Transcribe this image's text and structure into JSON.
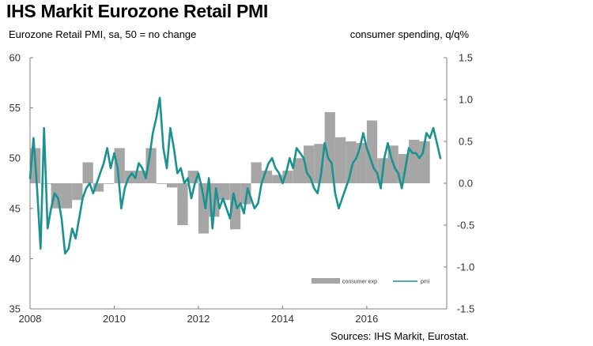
{
  "title": "IHS Markit Eurozone Retail PMI",
  "subtitle_left": "Eurozone Retail PMI, sa, 50 = no change",
  "subtitle_right": "consumer spending, q/q%",
  "source": "Sources: IHS Markit, Eurostat.",
  "colors": {
    "pmi_line": "#1a9290",
    "bars": "#a6a6a6",
    "axis": "#808080"
  },
  "chart_data": {
    "type": "line+bar",
    "title": "IHS Markit Eurozone Retail PMI",
    "xlabel": "",
    "ylabel_left": "Eurozone Retail PMI, sa, 50 = no change",
    "ylabel_right": "consumer spending, q/q%",
    "x_range": [
      2008,
      2017.9
    ],
    "x_ticks": [
      "2008",
      "2010",
      "2012",
      "2014",
      "2016"
    ],
    "y_left_range": [
      35,
      60
    ],
    "y_left_ticks": [
      "35",
      "40",
      "45",
      "50",
      "55",
      "60"
    ],
    "y_right_range": [
      -1.5,
      1.5
    ],
    "y_right_ticks": [
      "-1.5",
      "-1.0",
      "-0.5",
      "0.0",
      "0.5",
      "1.0",
      "1.5"
    ],
    "legend": {
      "position": "bottom-right",
      "entries": [
        "consumer exp",
        "pmi"
      ]
    },
    "series": [
      {
        "name": "consumer exp",
        "kind": "bar",
        "axis": "right",
        "quarter_starts": [
          2008.0,
          2008.25,
          2008.5,
          2008.75,
          2009.0,
          2009.25,
          2009.5,
          2009.75,
          2010.0,
          2010.25,
          2010.5,
          2010.75,
          2011.0,
          2011.25,
          2011.5,
          2011.75,
          2012.0,
          2012.25,
          2012.5,
          2012.75,
          2013.0,
          2013.25,
          2013.5,
          2013.75,
          2014.0,
          2014.25,
          2014.5,
          2014.75,
          2015.0,
          2015.25,
          2015.5,
          2015.75,
          2016.0,
          2016.25,
          2016.5,
          2016.75,
          2017.0,
          2017.25
        ],
        "values": [
          0.42,
          0.0,
          -0.3,
          -0.3,
          -0.2,
          0.25,
          -0.1,
          0.0,
          0.42,
          0.15,
          0.15,
          0.42,
          0.0,
          -0.05,
          -0.5,
          0.15,
          -0.6,
          -0.4,
          -0.2,
          -0.55,
          -0.25,
          0.25,
          0.15,
          0.1,
          0.15,
          0.3,
          0.45,
          0.47,
          0.85,
          0.55,
          0.5,
          0.48,
          0.75,
          0.3,
          0.45,
          0.35,
          0.52,
          0.5
        ]
      },
      {
        "name": "pmi",
        "kind": "line",
        "axis": "left",
        "x": [
          2008.0,
          2008.083,
          2008.167,
          2008.25,
          2008.333,
          2008.417,
          2008.5,
          2008.583,
          2008.667,
          2008.75,
          2008.833,
          2008.917,
          2009.0,
          2009.083,
          2009.167,
          2009.25,
          2009.333,
          2009.417,
          2009.5,
          2009.583,
          2009.667,
          2009.75,
          2009.833,
          2009.917,
          2010.0,
          2010.083,
          2010.167,
          2010.25,
          2010.333,
          2010.417,
          2010.5,
          2010.583,
          2010.667,
          2010.75,
          2010.833,
          2010.917,
          2011.0,
          2011.083,
          2011.167,
          2011.25,
          2011.333,
          2011.417,
          2011.5,
          2011.583,
          2011.667,
          2011.75,
          2011.833,
          2011.917,
          2012.0,
          2012.083,
          2012.167,
          2012.25,
          2012.333,
          2012.417,
          2012.5,
          2012.583,
          2012.667,
          2012.75,
          2012.833,
          2012.917,
          2013.0,
          2013.083,
          2013.167,
          2013.25,
          2013.333,
          2013.417,
          2013.5,
          2013.583,
          2013.667,
          2013.75,
          2013.833,
          2013.917,
          2014.0,
          2014.083,
          2014.167,
          2014.25,
          2014.333,
          2014.417,
          2014.5,
          2014.583,
          2014.667,
          2014.75,
          2014.833,
          2014.917,
          2015.0,
          2015.083,
          2015.167,
          2015.25,
          2015.333,
          2015.417,
          2015.5,
          2015.583,
          2015.667,
          2015.75,
          2015.833,
          2015.917,
          2016.0,
          2016.083,
          2016.167,
          2016.25,
          2016.333,
          2016.417,
          2016.5,
          2016.583,
          2016.667,
          2016.75,
          2016.833,
          2016.917,
          2017.0,
          2017.083,
          2017.167,
          2017.25,
          2017.333,
          2017.417,
          2017.5,
          2017.583,
          2017.667,
          2017.75
        ],
        "values": [
          48.0,
          52.0,
          47.0,
          41.0,
          53.0,
          43.0,
          45.0,
          46.5,
          46.0,
          44.0,
          40.5,
          41.0,
          43.0,
          42.0,
          44.0,
          46.0,
          47.0,
          47.5,
          46.5,
          47.5,
          48.5,
          49.5,
          51.0,
          49.0,
          50.5,
          49.0,
          45.0,
          47.0,
          48.0,
          48.5,
          48.0,
          49.5,
          49.0,
          48.0,
          50.0,
          52.5,
          54.0,
          56.0,
          51.0,
          49.0,
          53.0,
          51.0,
          48.5,
          49.0,
          47.5,
          48.0,
          46.0,
          47.5,
          48.5,
          47.0,
          45.0,
          48.0,
          43.0,
          47.0,
          45.0,
          46.0,
          45.0,
          44.0,
          46.5,
          45.0,
          45.5,
          44.5,
          47.0,
          46.0,
          45.0,
          45.5,
          47.5,
          48.5,
          49.5,
          50.0,
          49.0,
          48.5,
          47.5,
          48.5,
          50.0,
          49.0,
          51.0,
          50.5,
          50.0,
          48.5,
          48.0,
          47.0,
          46.5,
          48.5,
          51.5,
          50.0,
          49.5,
          46.5,
          45.0,
          46.0,
          47.0,
          48.0,
          49.5,
          50.0,
          51.0,
          52.5,
          51.0,
          50.0,
          49.0,
          48.5,
          47.0,
          50.0,
          51.5,
          50.0,
          49.0,
          48.5,
          47.0,
          49.0,
          51.0,
          50.5,
          50.5,
          50.0,
          50.5,
          52.5,
          52.0,
          53.0,
          51.5,
          50.0
        ]
      }
    ]
  }
}
